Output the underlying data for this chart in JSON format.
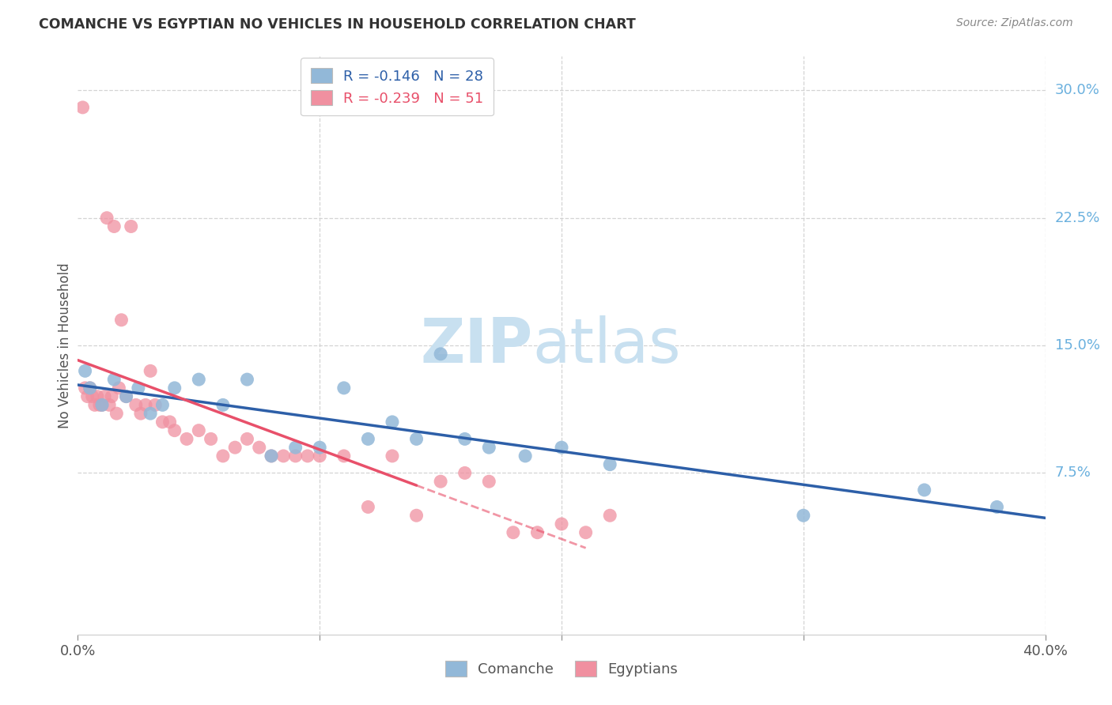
{
  "title": "COMANCHE VS EGYPTIAN NO VEHICLES IN HOUSEHOLD CORRELATION CHART",
  "source": "Source: ZipAtlas.com",
  "ylabel": "No Vehicles in Household",
  "xlim": [
    0,
    40
  ],
  "ylim": [
    -2,
    32
  ],
  "x_ticks": [
    0,
    10,
    20,
    30,
    40
  ],
  "x_tick_labels": [
    "0.0%",
    "",
    "",
    "",
    "40.0%"
  ],
  "y_ticks_right": [
    7.5,
    15.0,
    22.5,
    30.0
  ],
  "y_tick_labels_right": [
    "7.5%",
    "15.0%",
    "22.5%",
    "30.0%"
  ],
  "comanche_color": "#92b8d8",
  "egyptians_color": "#f090a0",
  "comanche_line_color": "#2d5fa8",
  "egyptians_line_color": "#e8506a",
  "grid_color": "#d0d0d0",
  "axis_tick_color": "#6ab0de",
  "ylabel_color": "#555555",
  "title_color": "#333333",
  "source_color": "#888888",
  "watermark_zip": "ZIP",
  "watermark_atlas": "atlas",
  "watermark_color": "#c8e0f0",
  "legend_entry_1": "R = -0.146   N = 28",
  "legend_entry_2": "R = -0.239   N = 51",
  "legend_color_1": "#2d5fa8",
  "legend_color_2": "#e8506a",
  "bottom_legend_comanche": "Comanche",
  "bottom_legend_egyptians": "Egyptians",
  "comanche_x": [
    0.3,
    0.5,
    1.0,
    1.5,
    2.0,
    2.5,
    3.0,
    3.5,
    4.0,
    5.0,
    6.0,
    7.0,
    8.0,
    9.0,
    10.0,
    11.0,
    12.0,
    13.0,
    14.0,
    15.0,
    16.0,
    17.0,
    18.5,
    20.0,
    22.0,
    30.0,
    35.0,
    38.0
  ],
  "comanche_y": [
    13.5,
    12.5,
    11.5,
    13.0,
    12.0,
    12.5,
    11.0,
    11.5,
    12.5,
    13.0,
    11.5,
    13.0,
    8.5,
    9.0,
    9.0,
    12.5,
    9.5,
    10.5,
    9.5,
    14.5,
    9.5,
    9.0,
    8.5,
    9.0,
    8.0,
    5.0,
    6.5,
    5.5
  ],
  "egyptians_x": [
    0.2,
    0.3,
    0.4,
    0.5,
    0.6,
    0.7,
    0.8,
    0.9,
    1.0,
    1.1,
    1.2,
    1.3,
    1.4,
    1.5,
    1.6,
    1.7,
    1.8,
    2.0,
    2.2,
    2.4,
    2.6,
    2.8,
    3.0,
    3.2,
    3.5,
    3.8,
    4.0,
    4.5,
    5.0,
    5.5,
    6.0,
    6.5,
    7.0,
    7.5,
    8.0,
    8.5,
    9.0,
    9.5,
    10.0,
    11.0,
    12.0,
    13.0,
    14.0,
    15.0,
    16.0,
    17.0,
    18.0,
    19.0,
    20.0,
    21.0,
    22.0
  ],
  "egyptians_y": [
    29.0,
    12.5,
    12.0,
    12.5,
    12.0,
    11.5,
    12.0,
    11.5,
    11.5,
    12.0,
    22.5,
    11.5,
    12.0,
    22.0,
    11.0,
    12.5,
    16.5,
    12.0,
    22.0,
    11.5,
    11.0,
    11.5,
    13.5,
    11.5,
    10.5,
    10.5,
    10.0,
    9.5,
    10.0,
    9.5,
    8.5,
    9.0,
    9.5,
    9.0,
    8.5,
    8.5,
    8.5,
    8.5,
    8.5,
    8.5,
    5.5,
    8.5,
    5.0,
    7.0,
    7.5,
    7.0,
    4.0,
    4.0,
    4.5,
    4.0,
    5.0
  ],
  "egyptians_line_x_solid_end": 14.0,
  "egyptians_line_x_dashed_end": 21.0
}
